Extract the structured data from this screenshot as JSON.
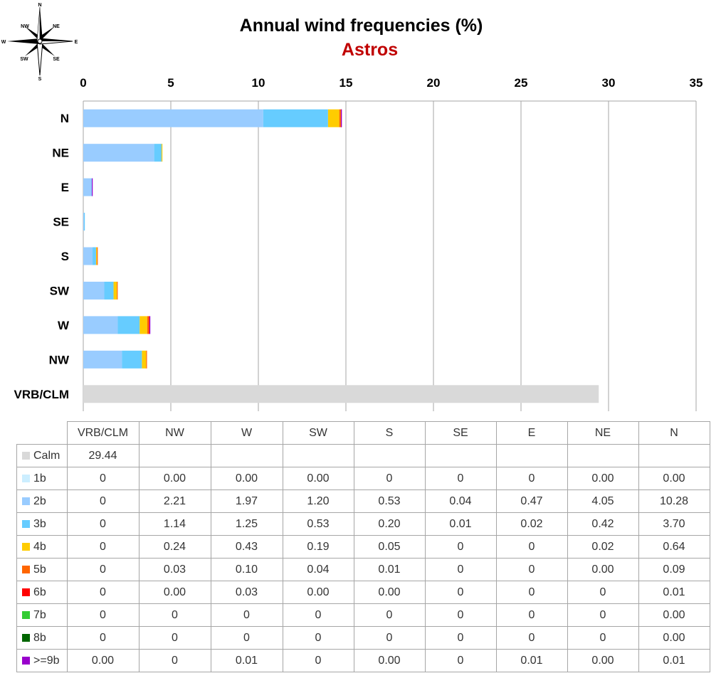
{
  "title": "Annual wind frequencies (%)",
  "subtitle": "Astros",
  "compass": {
    "N": "N",
    "NE": "NE",
    "E": "E",
    "SE": "SE",
    "S": "S",
    "SW": "SW",
    "W": "W",
    "NW": "NW"
  },
  "legend": [
    {
      "label": "Calm",
      "color": "#d9d9d9"
    },
    {
      "label": "1b",
      "color": "#cceeff"
    },
    {
      "label": "2b",
      "color": "#99ccff"
    },
    {
      "label": "3b",
      "color": "#66ccff"
    },
    {
      "label": "4b",
      "color": "#ffcc00"
    },
    {
      "label": "5b",
      "color": "#ff6600"
    },
    {
      "label": "6b",
      "color": "#ff0000"
    },
    {
      "label": "7b",
      "color": "#33cc33"
    },
    {
      "label": "8b",
      "color": "#006600"
    },
    {
      "label": ">=9b",
      "color": "#9900cc"
    }
  ],
  "chart_data": {
    "type": "bar",
    "orientation": "horizontal",
    "stacked": true,
    "title": "Annual wind frequencies (%)",
    "subtitle": "Astros",
    "xlim": [
      0,
      35
    ],
    "xticks": [
      "0",
      "5",
      "10",
      "15",
      "20",
      "25",
      "30",
      "35"
    ],
    "grid": true,
    "categories": [
      "N",
      "NE",
      "E",
      "SE",
      "S",
      "SW",
      "W",
      "NW",
      "VRB/CLM"
    ],
    "series": [
      {
        "name": "Calm",
        "values": [
          0,
          0,
          0,
          0,
          0,
          0,
          0,
          0,
          29.44
        ]
      },
      {
        "name": "1b",
        "values": [
          0,
          0,
          0,
          0,
          0,
          0,
          0,
          0,
          0
        ]
      },
      {
        "name": "2b",
        "values": [
          10.28,
          4.05,
          0.47,
          0.04,
          0.53,
          1.2,
          1.97,
          2.21,
          0
        ]
      },
      {
        "name": "3b",
        "values": [
          3.7,
          0.42,
          0.02,
          0.01,
          0.2,
          0.53,
          1.25,
          1.14,
          0
        ]
      },
      {
        "name": "4b",
        "values": [
          0.64,
          0.02,
          0,
          0,
          0.05,
          0.19,
          0.43,
          0.24,
          0
        ]
      },
      {
        "name": "5b",
        "values": [
          0.09,
          0,
          0,
          0,
          0.01,
          0.04,
          0.1,
          0.03,
          0
        ]
      },
      {
        "name": "6b",
        "values": [
          0.01,
          0,
          0,
          0,
          0,
          0,
          0.03,
          0,
          0
        ]
      },
      {
        "name": "7b",
        "values": [
          0,
          0,
          0,
          0,
          0,
          0,
          0,
          0,
          0
        ]
      },
      {
        "name": "8b",
        "values": [
          0,
          0,
          0,
          0,
          0,
          0,
          0,
          0,
          0
        ]
      },
      {
        "name": ">=9b",
        "values": [
          0.01,
          0,
          0.01,
          0,
          0,
          0,
          0.01,
          0,
          0
        ]
      }
    ],
    "table": {
      "columns": [
        "VRB/CLM",
        "NW",
        "W",
        "SW",
        "S",
        "SE",
        "E",
        "NE",
        "N"
      ],
      "rows": [
        {
          "label": "Calm",
          "cells": [
            "29.44",
            "",
            "",
            "",
            "",
            "",
            "",
            "",
            ""
          ]
        },
        {
          "label": "1b",
          "cells": [
            "0",
            "0.00",
            "0.00",
            "0.00",
            "0",
            "0",
            "0",
            "0.00",
            "0.00"
          ]
        },
        {
          "label": "2b",
          "cells": [
            "0",
            "2.21",
            "1.97",
            "1.20",
            "0.53",
            "0.04",
            "0.47",
            "4.05",
            "10.28"
          ]
        },
        {
          "label": "3b",
          "cells": [
            "0",
            "1.14",
            "1.25",
            "0.53",
            "0.20",
            "0.01",
            "0.02",
            "0.42",
            "3.70"
          ]
        },
        {
          "label": "4b",
          "cells": [
            "0",
            "0.24",
            "0.43",
            "0.19",
            "0.05",
            "0",
            "0",
            "0.02",
            "0.64"
          ]
        },
        {
          "label": "5b",
          "cells": [
            "0",
            "0.03",
            "0.10",
            "0.04",
            "0.01",
            "0",
            "0",
            "0.00",
            "0.09"
          ]
        },
        {
          "label": "6b",
          "cells": [
            "0",
            "0.00",
            "0.03",
            "0.00",
            "0.00",
            "0",
            "0",
            "0",
            "0.01"
          ]
        },
        {
          "label": "7b",
          "cells": [
            "0",
            "0",
            "0",
            "0",
            "0",
            "0",
            "0",
            "0",
            "0.00"
          ]
        },
        {
          "label": "8b",
          "cells": [
            "0",
            "0",
            "0",
            "0",
            "0",
            "0",
            "0",
            "0",
            "0.00"
          ]
        },
        {
          "label": ">=9b",
          "cells": [
            "0.00",
            "0",
            "0.01",
            "0",
            "0.00",
            "0",
            "0.01",
            "0.00",
            "0.01"
          ]
        }
      ]
    }
  }
}
